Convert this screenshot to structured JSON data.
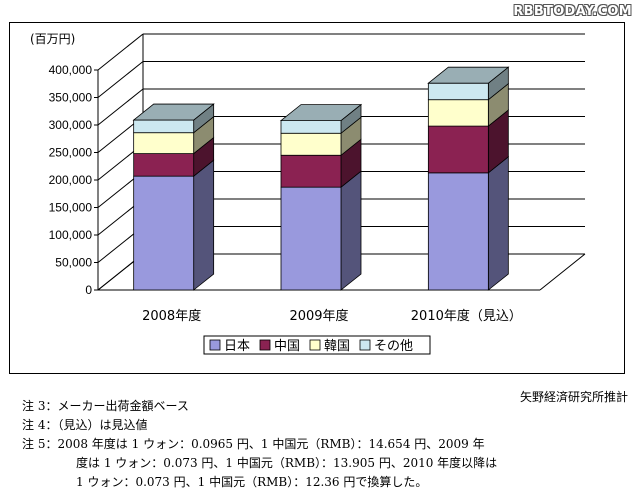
{
  "watermark": "RBBTODAY.COM",
  "source": "矢野経済研究所推計",
  "notes": [
    "注 3：メーカー出荷金額ベース",
    "注 4：（見込）は見込値",
    "注 5：2008 年度は 1 ウォン：0.0965 円、1 中国元（RMB）：14.654 円、2009 年",
    "度は 1 ウォン：0.073 円、1 中国元（RMB）：13.905 円、2010 年度以降は",
    "1 ウォン：0.073 円、1 中国元（RMB）：12.36 円で換算した。"
  ],
  "chart_data": {
    "type": "bar",
    "stacked": true,
    "three_d": true,
    "unit_label": "(百万円)",
    "categories": [
      "2008年度",
      "2009年度",
      "2010年度（見込）"
    ],
    "series": [
      {
        "name": "日本",
        "color": "#9999dd",
        "values": [
          207000,
          187000,
          213000
        ]
      },
      {
        "name": "中国",
        "color": "#8b2252",
        "values": [
          41000,
          58000,
          85000
        ]
      },
      {
        "name": "韓国",
        "color": "#ffffcc",
        "values": [
          38000,
          40000,
          48000
        ]
      },
      {
        "name": "その他",
        "color": "#cce8f0",
        "values": [
          23000,
          23000,
          30000
        ]
      }
    ],
    "ylim": [
      0,
      400000
    ],
    "yticks": [
      "0",
      "50,000",
      "100,000",
      "150,000",
      "200,000",
      "250,000",
      "300,000",
      "350,000",
      "400,000"
    ],
    "ytick_values": [
      0,
      50000,
      100000,
      150000,
      200000,
      250000,
      300000,
      350000,
      400000
    ],
    "grid": true,
    "legend_position": "bottom"
  }
}
